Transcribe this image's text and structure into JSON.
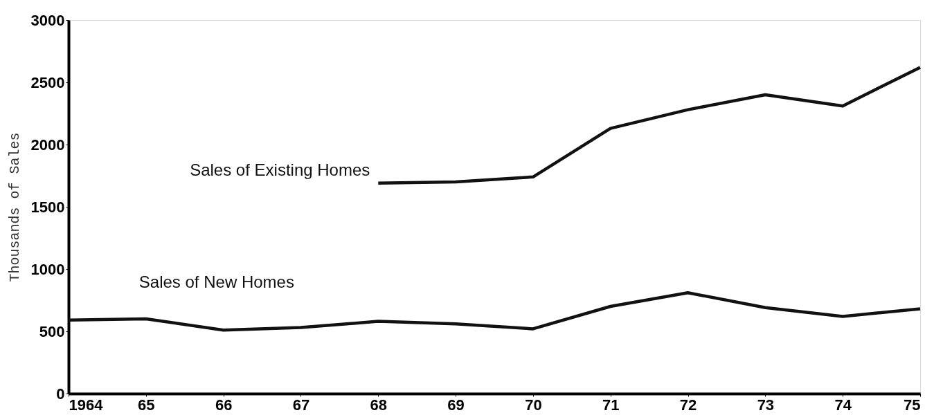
{
  "chart_data": {
    "type": "line",
    "ylabel": "Thousands of Sales",
    "x": [
      1964,
      1965,
      1966,
      1967,
      1968,
      1969,
      1970,
      1971,
      1972,
      1973,
      1974,
      1975
    ],
    "series": [
      {
        "name": "Sales of Existing Homes",
        "color": "#111111",
        "values": [
          null,
          null,
          null,
          null,
          1690,
          1700,
          1740,
          2130,
          2280,
          2400,
          2310,
          2620
        ]
      },
      {
        "name": "Sales of New Homes",
        "color": "#111111",
        "values": [
          590,
          600,
          510,
          530,
          580,
          560,
          520,
          700,
          810,
          690,
          620,
          680
        ]
      }
    ],
    "xlim": [
      1964,
      1975
    ],
    "xticks": [
      1964,
      {
        "value": 1965,
        "label": "65"
      },
      {
        "value": 1966,
        "label": "66"
      },
      {
        "value": 1967,
        "label": "67"
      },
      {
        "value": 1968,
        "label": "68"
      },
      {
        "value": 1969,
        "label": "69"
      },
      {
        "value": 1970,
        "label": "70"
      },
      {
        "value": 1971,
        "label": "71"
      },
      {
        "value": 1972,
        "label": "72"
      },
      {
        "value": 1973,
        "label": "73"
      },
      {
        "value": 1974,
        "label": "74"
      },
      {
        "value": 1975,
        "label": "75"
      }
    ],
    "ylim": [
      0,
      3000
    ],
    "yticks": [
      0,
      500,
      1000,
      1500,
      2000,
      2500,
      3000
    ],
    "grid": false,
    "marker": "none",
    "line_style": "solid"
  }
}
